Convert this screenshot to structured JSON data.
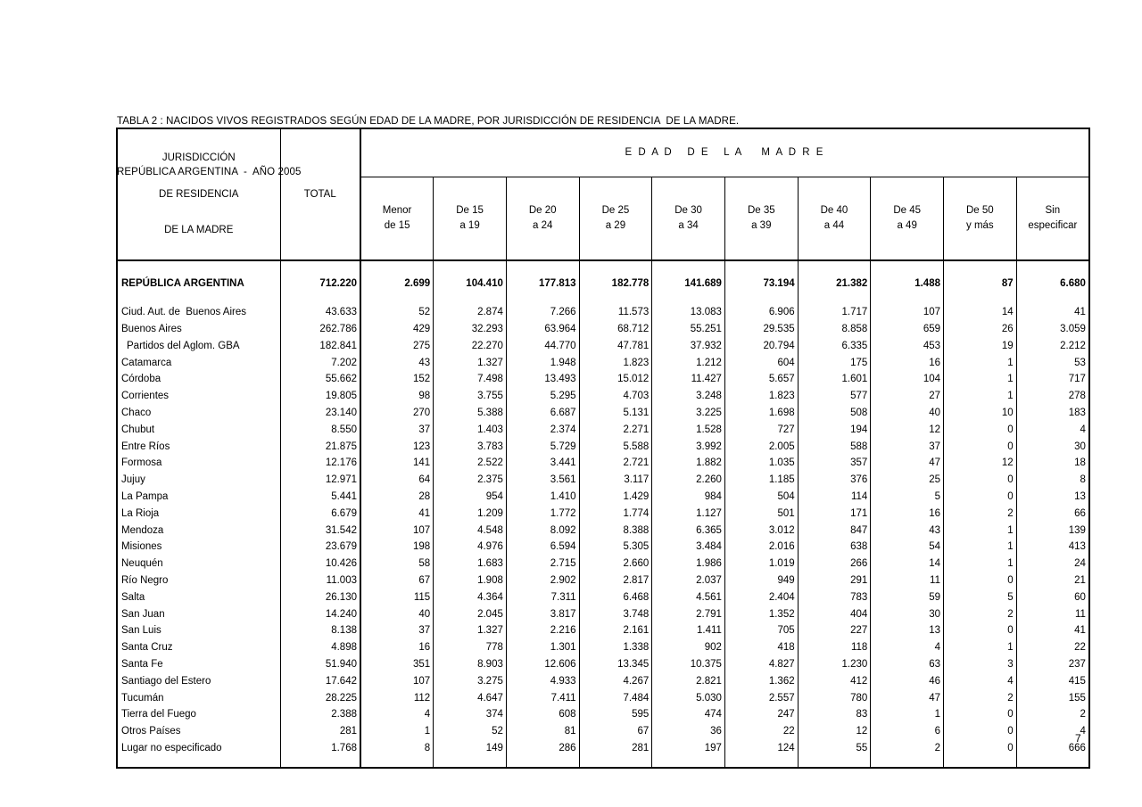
{
  "page": {
    "title_line1": "TABLA 2 : NACIDOS VIVOS REGISTRADOS SEGÚN EDAD DE LA MADRE, POR JURISDICCIÓN DE RESIDENCIA  DE LA MADRE.",
    "title_line2": "REPÚBLICA ARGENTINA  -  AÑO 2005",
    "page_number": "7",
    "colors": {
      "text": "#000000",
      "background": "#ffffff",
      "border": "#000000"
    }
  },
  "table": {
    "corner_header": [
      "JURISDICCIÓN",
      "DE RESIDENCIA",
      "DE LA MADRE"
    ],
    "total_header": "TOTAL",
    "group_header": "E D A D   D E   L A    M A D R E",
    "age_columns": [
      [
        "Menor",
        "de 15"
      ],
      [
        "De 15",
        "a 19"
      ],
      [
        "De 20",
        "a 24"
      ],
      [
        "De 25",
        "a 29"
      ],
      [
        "De 30",
        "a 34"
      ],
      [
        "De 35",
        "a 39"
      ],
      [
        "De 40",
        "a 44"
      ],
      [
        "De 45",
        "a 49"
      ],
      [
        "De 50",
        "y más"
      ],
      [
        "Sin",
        "especificar"
      ]
    ],
    "total_row": {
      "label": "REPÚBLICA ARGENTINA",
      "values": [
        "712.220",
        "2.699",
        "104.410",
        "177.813",
        "182.778",
        "141.689",
        "73.194",
        "21.382",
        "1.488",
        "87",
        "6.680"
      ]
    },
    "rows": [
      {
        "label": "Ciud. Aut. de  Buenos Aires",
        "indent": false,
        "values": [
          "43.633",
          "52",
          "2.874",
          "7.266",
          "11.573",
          "13.083",
          "6.906",
          "1.717",
          "107",
          "14",
          "41"
        ]
      },
      {
        "label": "Buenos Aires",
        "indent": false,
        "values": [
          "262.786",
          "429",
          "32.293",
          "63.964",
          "68.712",
          "55.251",
          "29.535",
          "8.858",
          "659",
          "26",
          "3.059"
        ]
      },
      {
        "label": "Partidos del Aglom. GBA",
        "indent": true,
        "values": [
          "182.841",
          "275",
          "22.270",
          "44.770",
          "47.781",
          "37.932",
          "20.794",
          "6.335",
          "453",
          "19",
          "2.212"
        ]
      },
      {
        "label": "Catamarca",
        "indent": false,
        "values": [
          "7.202",
          "43",
          "1.327",
          "1.948",
          "1.823",
          "1.212",
          "604",
          "175",
          "16",
          "1",
          "53"
        ]
      },
      {
        "label": "Córdoba",
        "indent": false,
        "values": [
          "55.662",
          "152",
          "7.498",
          "13.493",
          "15.012",
          "11.427",
          "5.657",
          "1.601",
          "104",
          "1",
          "717"
        ]
      },
      {
        "label": "Corrientes",
        "indent": false,
        "values": [
          "19.805",
          "98",
          "3.755",
          "5.295",
          "4.703",
          "3.248",
          "1.823",
          "577",
          "27",
          "1",
          "278"
        ]
      },
      {
        "label": "Chaco",
        "indent": false,
        "values": [
          "23.140",
          "270",
          "5.388",
          "6.687",
          "5.131",
          "3.225",
          "1.698",
          "508",
          "40",
          "10",
          "183"
        ]
      },
      {
        "label": "Chubut",
        "indent": false,
        "values": [
          "8.550",
          "37",
          "1.403",
          "2.374",
          "2.271",
          "1.528",
          "727",
          "194",
          "12",
          "0",
          "4"
        ]
      },
      {
        "label": "Entre Ríos",
        "indent": false,
        "values": [
          "21.875",
          "123",
          "3.783",
          "5.729",
          "5.588",
          "3.992",
          "2.005",
          "588",
          "37",
          "0",
          "30"
        ]
      },
      {
        "label": "Formosa",
        "indent": false,
        "values": [
          "12.176",
          "141",
          "2.522",
          "3.441",
          "2.721",
          "1.882",
          "1.035",
          "357",
          "47",
          "12",
          "18"
        ]
      },
      {
        "label": "Jujuy",
        "indent": false,
        "values": [
          "12.971",
          "64",
          "2.375",
          "3.561",
          "3.117",
          "2.260",
          "1.185",
          "376",
          "25",
          "0",
          "8"
        ]
      },
      {
        "label": "La Pampa",
        "indent": false,
        "values": [
          "5.441",
          "28",
          "954",
          "1.410",
          "1.429",
          "984",
          "504",
          "114",
          "5",
          "0",
          "13"
        ]
      },
      {
        "label": "La Rioja",
        "indent": false,
        "values": [
          "6.679",
          "41",
          "1.209",
          "1.772",
          "1.774",
          "1.127",
          "501",
          "171",
          "16",
          "2",
          "66"
        ]
      },
      {
        "label": "Mendoza",
        "indent": false,
        "values": [
          "31.542",
          "107",
          "4.548",
          "8.092",
          "8.388",
          "6.365",
          "3.012",
          "847",
          "43",
          "1",
          "139"
        ]
      },
      {
        "label": "Misiones",
        "indent": false,
        "values": [
          "23.679",
          "198",
          "4.976",
          "6.594",
          "5.305",
          "3.484",
          "2.016",
          "638",
          "54",
          "1",
          "413"
        ]
      },
      {
        "label": "Neuquén",
        "indent": false,
        "values": [
          "10.426",
          "58",
          "1.683",
          "2.715",
          "2.660",
          "1.986",
          "1.019",
          "266",
          "14",
          "1",
          "24"
        ]
      },
      {
        "label": "Río Negro",
        "indent": false,
        "values": [
          "11.003",
          "67",
          "1.908",
          "2.902",
          "2.817",
          "2.037",
          "949",
          "291",
          "11",
          "0",
          "21"
        ]
      },
      {
        "label": "Salta",
        "indent": false,
        "values": [
          "26.130",
          "115",
          "4.364",
          "7.311",
          "6.468",
          "4.561",
          "2.404",
          "783",
          "59",
          "5",
          "60"
        ]
      },
      {
        "label": "San Juan",
        "indent": false,
        "values": [
          "14.240",
          "40",
          "2.045",
          "3.817",
          "3.748",
          "2.791",
          "1.352",
          "404",
          "30",
          "2",
          "11"
        ]
      },
      {
        "label": "San Luis",
        "indent": false,
        "values": [
          "8.138",
          "37",
          "1.327",
          "2.216",
          "2.161",
          "1.411",
          "705",
          "227",
          "13",
          "0",
          "41"
        ]
      },
      {
        "label": "Santa Cruz",
        "indent": false,
        "values": [
          "4.898",
          "16",
          "778",
          "1.301",
          "1.338",
          "902",
          "418",
          "118",
          "4",
          "1",
          "22"
        ]
      },
      {
        "label": "Santa Fe",
        "indent": false,
        "values": [
          "51.940",
          "351",
          "8.903",
          "12.606",
          "13.345",
          "10.375",
          "4.827",
          "1.230",
          "63",
          "3",
          "237"
        ]
      },
      {
        "label": "Santiago del Estero",
        "indent": false,
        "values": [
          "17.642",
          "107",
          "3.275",
          "4.933",
          "4.267",
          "2.821",
          "1.362",
          "412",
          "46",
          "4",
          "415"
        ]
      },
      {
        "label": "Tucumán",
        "indent": false,
        "values": [
          "28.225",
          "112",
          "4.647",
          "7.411",
          "7.484",
          "5.030",
          "2.557",
          "780",
          "47",
          "2",
          "155"
        ]
      },
      {
        "label": "Tierra del Fuego",
        "indent": false,
        "values": [
          "2.388",
          "4",
          "374",
          "608",
          "595",
          "474",
          "247",
          "83",
          "1",
          "0",
          "2"
        ]
      },
      {
        "label": "Otros Países",
        "indent": false,
        "values": [
          "281",
          "1",
          "52",
          "81",
          "67",
          "36",
          "22",
          "12",
          "6",
          "0",
          "4"
        ]
      },
      {
        "label": "Lugar no especificado",
        "indent": false,
        "values": [
          "1.768",
          "8",
          "149",
          "286",
          "281",
          "197",
          "124",
          "55",
          "2",
          "0",
          "666"
        ]
      }
    ]
  }
}
